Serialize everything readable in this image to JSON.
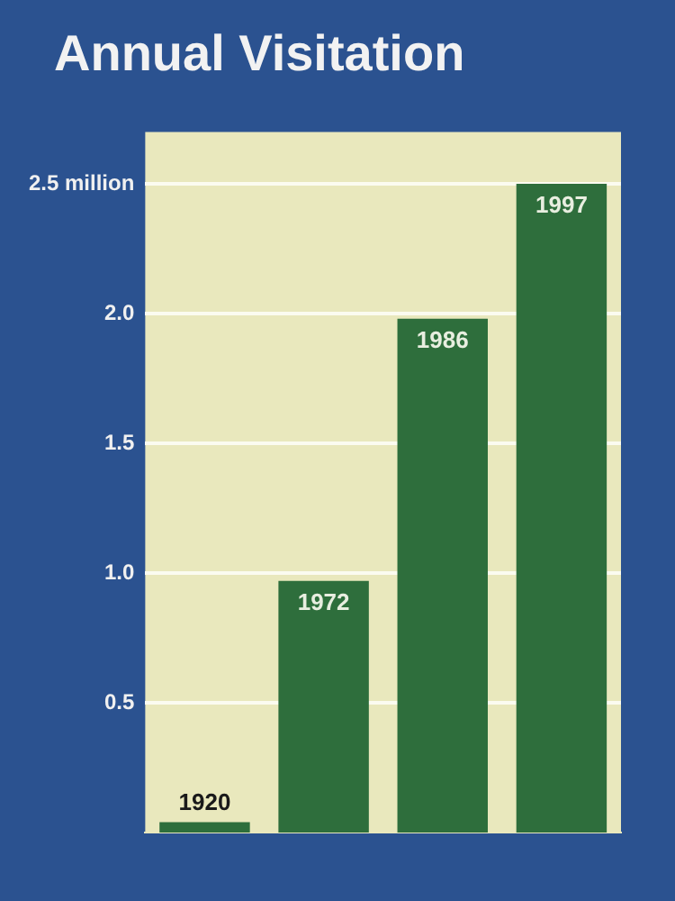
{
  "chart_data": {
    "type": "bar",
    "title": "Annual Visitation",
    "categories": [
      "1920",
      "1972",
      "1986",
      "1997"
    ],
    "values": [
      0.04,
      0.97,
      1.98,
      2.5
    ],
    "color": "#2e6e3c",
    "ylim": [
      0,
      2.7
    ],
    "yticks": [
      {
        "value": 0.5,
        "label": "0.5"
      },
      {
        "value": 1,
        "label": "1.0"
      },
      {
        "value": 1.5,
        "label": "1.5"
      },
      {
        "value": 2,
        "label": "2.0"
      },
      {
        "value": 2.5,
        "label": "2.5 million"
      }
    ],
    "grid": "y"
  }
}
